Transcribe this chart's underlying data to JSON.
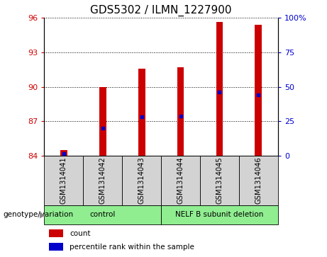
{
  "title": "GDS5302 / ILMN_1227900",
  "samples": [
    "GSM1314041",
    "GSM1314042",
    "GSM1314043",
    "GSM1314044",
    "GSM1314045",
    "GSM1314046"
  ],
  "count_values": [
    84.45,
    90.0,
    91.6,
    91.7,
    95.65,
    95.4
  ],
  "percentile_values": [
    1.5,
    20.0,
    28.0,
    28.5,
    46.0,
    44.0
  ],
  "ylim_left": [
    84,
    96
  ],
  "ylim_right": [
    0,
    100
  ],
  "yticks_left": [
    84,
    87,
    90,
    93,
    96
  ],
  "yticks_right": [
    0,
    25,
    50,
    75,
    100
  ],
  "bar_color": "#cc0000",
  "dot_color": "#0000cc",
  "bar_bottom": 84,
  "bar_width": 0.18,
  "grid_linestyle": "dotted",
  "grid_color": "#000000",
  "group_ranges": [
    [
      0,
      2,
      "control"
    ],
    [
      3,
      5,
      "NELF B subunit deletion"
    ]
  ],
  "group_label_prefix": "genotype/variation",
  "legend": [
    {
      "label": "count",
      "color": "#cc0000"
    },
    {
      "label": "percentile rank within the sample",
      "color": "#0000cc"
    }
  ],
  "left_tick_color": "#cc0000",
  "right_tick_color": "#0000cc",
  "background_plot": "#ffffff",
  "background_labels": "#d3d3d3",
  "background_group": "#90ee90",
  "title_fontsize": 11
}
